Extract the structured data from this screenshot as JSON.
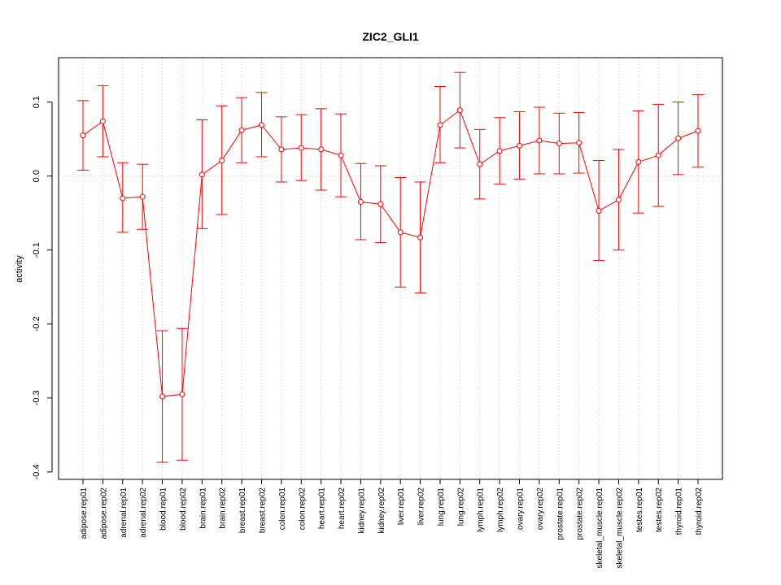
{
  "chart_data": {
    "type": "line",
    "title": "ZIC2_GLI1",
    "xlabel": "",
    "ylabel": "activity",
    "ylim": [
      -0.41,
      0.16
    ],
    "yticks": [
      -0.4,
      -0.3,
      -0.2,
      -0.1,
      0.0,
      0.1
    ],
    "ytick_labels": [
      "-0.4",
      "-0.3",
      "-0.2",
      "-0.1",
      "0.0",
      "0.1"
    ],
    "grid": true,
    "colors": {
      "series": "#ff0000",
      "grid": "#c8c8c8",
      "axis": "#000000"
    },
    "categories": [
      "adipose.rep01",
      "adipose.rep02",
      "adrenal.rep01",
      "adrenal.rep02",
      "blood.rep01",
      "blood.rep02",
      "brain.rep01",
      "brain.rep02",
      "breast.rep01",
      "breast.rep02",
      "colon.rep01",
      "colon.rep02",
      "heart.rep01",
      "heart.rep02",
      "kidney.rep01",
      "kidney.rep02",
      "liver.rep01",
      "liver.rep02",
      "lung.rep01",
      "lung.rep02",
      "lymph.rep01",
      "lymph.rep02",
      "ovary.rep01",
      "ovary.rep02",
      "prostate.rep01",
      "prostate.rep02",
      "skeletal_muscle.rep01",
      "skeletal_muscle.rep02",
      "testes.rep01",
      "testes.rep02",
      "thyroid.rep01",
      "thyroid.rep02"
    ],
    "values": [
      0.055,
      0.074,
      -0.03,
      -0.028,
      -0.298,
      -0.295,
      0.002,
      0.021,
      0.062,
      0.069,
      0.036,
      0.038,
      0.036,
      0.028,
      -0.035,
      -0.038,
      -0.076,
      -0.083,
      0.069,
      0.089,
      0.016,
      0.034,
      0.041,
      0.048,
      0.044,
      0.045,
      -0.047,
      -0.032,
      0.019,
      0.028,
      0.051,
      0.061
    ],
    "upper": [
      0.102,
      0.122,
      0.018,
      0.016,
      -0.209,
      -0.206,
      0.076,
      0.095,
      0.106,
      0.113,
      0.08,
      0.083,
      0.091,
      0.084,
      0.017,
      0.014,
      -0.002,
      -0.008,
      0.121,
      0.14,
      0.063,
      0.079,
      0.087,
      0.093,
      0.085,
      0.086,
      0.021,
      0.036,
      0.088,
      0.097,
      0.1,
      0.11
    ],
    "lower": [
      0.008,
      0.026,
      -0.076,
      -0.072,
      -0.387,
      -0.384,
      -0.071,
      -0.052,
      0.018,
      0.026,
      -0.008,
      -0.006,
      -0.019,
      -0.028,
      -0.086,
      -0.09,
      -0.15,
      -0.158,
      0.018,
      0.038,
      -0.031,
      -0.011,
      -0.004,
      0.003,
      0.003,
      0.004,
      -0.114,
      -0.1,
      -0.05,
      -0.041,
      0.002,
      0.012
    ]
  }
}
